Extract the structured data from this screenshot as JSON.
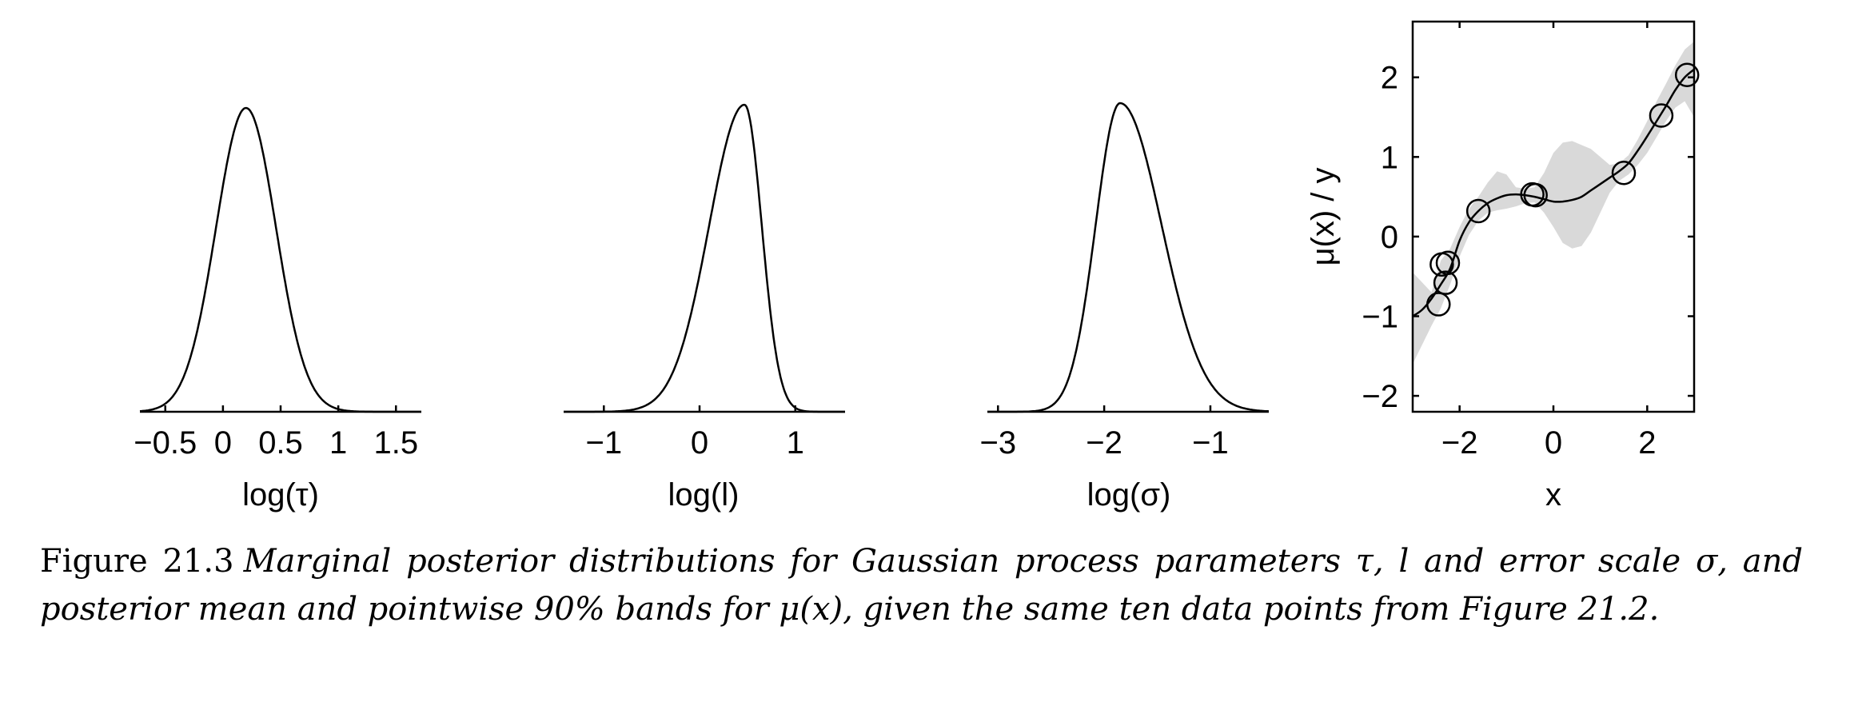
{
  "chart_data": [
    {
      "type": "line",
      "xlabel": "log(τ)",
      "xlim": [
        -0.72,
        1.72
      ],
      "xticks": [
        -0.5,
        0,
        0.5,
        1,
        1.5
      ],
      "xtick_labels": [
        "−0.5",
        "0",
        "0.5",
        "1",
        "1.5"
      ],
      "ylim": [
        0,
        1
      ],
      "shape": {
        "mode": 0.2,
        "sd_left": 0.26,
        "sd_right": 0.26
      },
      "grid": false,
      "box": false
    },
    {
      "type": "line",
      "xlabel": "log(l)",
      "xlim": [
        -1.42,
        1.52
      ],
      "xticks": [
        -1,
        0,
        1
      ],
      "xtick_labels": [
        "−1",
        "0",
        "1"
      ],
      "ylim": [
        0,
        1
      ],
      "shape": {
        "mode": 0.47,
        "sd_left": 0.37,
        "sd_right": 0.18
      },
      "grid": false,
      "box": false
    },
    {
      "type": "line",
      "xlabel": "log(σ)",
      "xlim": [
        -3.1,
        -0.45
      ],
      "xticks": [
        -3,
        -2,
        -1
      ],
      "xtick_labels": [
        "−3",
        "−2",
        "−1"
      ],
      "ylim": [
        0,
        1
      ],
      "shape": {
        "mode": -1.85,
        "sd_left": 0.23,
        "sd_right": 0.39
      },
      "grid": false,
      "box": false
    },
    {
      "type": "line",
      "xlabel": "x",
      "ylabel": "μ(x) / y",
      "xlim": [
        -3,
        3
      ],
      "ylim": [
        -2.2,
        2.7
      ],
      "xticks": [
        -2,
        0,
        2
      ],
      "xtick_labels": [
        "−2",
        "0",
        "2"
      ],
      "yticks": [
        -2,
        -1,
        0,
        1,
        2
      ],
      "ytick_labels": [
        "−2",
        "−1",
        "0",
        "1",
        "2"
      ],
      "box": true,
      "grid": false,
      "mean": {
        "x": [
          -3,
          -2.8,
          -2.6,
          -2.4,
          -2.2,
          -2.0,
          -1.8,
          -1.6,
          -1.4,
          -1.2,
          -1.0,
          -0.8,
          -0.6,
          -0.4,
          -0.2,
          0,
          0.2,
          0.4,
          0.6,
          0.8,
          1.0,
          1.2,
          1.4,
          1.6,
          1.8,
          2.0,
          2.2,
          2.4,
          2.6,
          2.8,
          3.0
        ],
        "y": [
          -1.0,
          -0.92,
          -0.78,
          -0.6,
          -0.4,
          -0.05,
          0.18,
          0.32,
          0.42,
          0.48,
          0.52,
          0.53,
          0.52,
          0.5,
          0.47,
          0.44,
          0.44,
          0.46,
          0.5,
          0.58,
          0.66,
          0.74,
          0.82,
          0.92,
          1.08,
          1.26,
          1.45,
          1.64,
          1.84,
          2.0,
          2.1
        ]
      },
      "band": {
        "x": [
          -3,
          -2.6,
          -2.4,
          -2.2,
          -2.0,
          -1.8,
          -1.6,
          -1.4,
          -1.2,
          -1.0,
          -0.8,
          -0.6,
          -0.4,
          -0.2,
          0,
          0.2,
          0.4,
          0.6,
          0.8,
          1.0,
          1.2,
          1.4,
          1.6,
          1.8,
          2.0,
          2.2,
          2.4,
          2.6,
          2.8,
          3.0
        ],
        "lower": [
          -1.6,
          -1.12,
          -0.9,
          -0.6,
          -0.25,
          0.02,
          0.2,
          0.3,
          0.33,
          0.35,
          0.38,
          0.42,
          0.43,
          0.3,
          0.12,
          -0.08,
          -0.15,
          -0.12,
          0.05,
          0.3,
          0.55,
          0.7,
          0.78,
          0.9,
          1.05,
          1.25,
          1.45,
          1.62,
          1.7,
          1.5
        ],
        "upper": [
          -0.45,
          -0.7,
          -0.3,
          -0.15,
          0.12,
          0.35,
          0.5,
          0.68,
          0.82,
          0.78,
          0.62,
          0.6,
          0.62,
          0.8,
          1.05,
          1.18,
          1.2,
          1.15,
          1.1,
          1.0,
          0.9,
          0.92,
          1.02,
          1.22,
          1.45,
          1.7,
          1.92,
          2.15,
          2.35,
          2.45
        ],
        "color": "#d9d9d9"
      },
      "points": {
        "x": [
          -2.45,
          -2.38,
          -2.3,
          -2.25,
          -1.6,
          -0.45,
          -0.38,
          1.5,
          2.3,
          2.85
        ],
        "y": [
          -0.85,
          -0.35,
          -0.58,
          -0.33,
          0.32,
          0.53,
          0.52,
          0.8,
          1.52,
          2.03
        ]
      }
    }
  ],
  "caption": {
    "number": "Figure 21.3",
    "text": "Marginal posterior distributions for Gaussian process parameters τ, l and error scale σ, and posterior mean and pointwise 90% bands for μ(x), given the same ten data points from Figure 21.2."
  }
}
